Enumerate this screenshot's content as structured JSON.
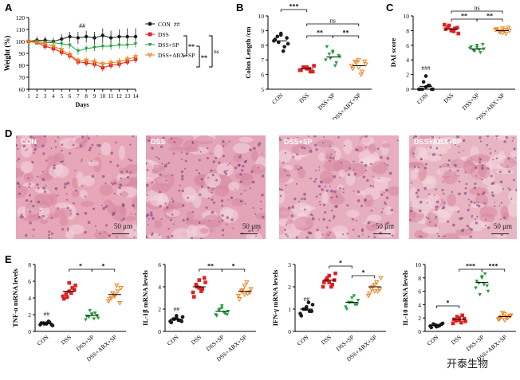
{
  "panels": {
    "A": "A",
    "B": "B",
    "C": "C",
    "D": "D",
    "E": "E"
  },
  "groups": [
    "CON",
    "DSS",
    "DSS+SP",
    "DSS+ABX+SP"
  ],
  "colors": {
    "CON": "#1a1a1a",
    "DSS": "#e02020",
    "DSS+SP": "#1e9e3a",
    "DSS+ABX+SP": "#f07e1a"
  },
  "tissue": {
    "scale_label": "50 μm",
    "labels": [
      "CON",
      "DSS",
      "DSS+SP",
      "DSS+ABX+SP"
    ]
  },
  "watermark": "开泰生物",
  "chart_data": [
    {
      "id": "A",
      "type": "line",
      "title": "",
      "xlabel": "Days",
      "ylabel": "Weight (%)",
      "x": [
        1,
        2,
        3,
        4,
        5,
        6,
        7,
        8,
        9,
        10,
        11,
        12,
        13,
        14
      ],
      "xlim": [
        1,
        14
      ],
      "ylim": [
        60,
        120
      ],
      "yticks": [
        60,
        70,
        80,
        90,
        100,
        110,
        120
      ],
      "series": [
        {
          "name": "CON",
          "values": [
            100,
            101,
            101,
            100,
            102,
            104,
            103,
            104,
            103,
            105,
            103,
            104,
            104,
            104
          ],
          "err": [
            2,
            3,
            3,
            3,
            4,
            4,
            5,
            5,
            5,
            6,
            6,
            6,
            7,
            7
          ]
        },
        {
          "name": "DSS",
          "values": [
            100,
            99,
            96,
            94,
            91,
            88,
            83,
            82,
            81,
            78,
            80,
            81,
            83,
            85
          ],
          "err": [
            1,
            2,
            3,
            3,
            3,
            3,
            3,
            3,
            3,
            3,
            3,
            3,
            3,
            3
          ]
        },
        {
          "name": "DSS+SP",
          "values": [
            100,
            100,
            99,
            99,
            98,
            97,
            92,
            94,
            95,
            96,
            96,
            97,
            97,
            98
          ],
          "err": [
            2,
            2,
            2,
            3,
            3,
            3,
            3,
            3,
            3,
            3,
            3,
            3,
            3,
            3
          ]
        },
        {
          "name": "DSS+ABX+SP",
          "values": [
            100,
            99,
            98,
            96,
            93,
            89,
            84,
            84,
            83,
            81,
            82,
            83,
            85,
            87
          ],
          "err": [
            1,
            2,
            3,
            3,
            3,
            3,
            3,
            3,
            3,
            3,
            3,
            3,
            3,
            3
          ]
        }
      ],
      "annotations": [
        "##"
      ],
      "legend": [
        {
          "name": "CON",
          "mark": "##"
        },
        {
          "name": "DSS",
          "mark": ""
        },
        {
          "name": "DSS+SP",
          "mark": ""
        },
        {
          "name": "DSS+ABX+SP",
          "mark": ""
        }
      ],
      "brackets": [
        "**",
        "**",
        "ns"
      ]
    },
    {
      "id": "B",
      "type": "scatter",
      "title": "",
      "ylabel": "Colon Length /cm",
      "ylim": [
        5,
        10
      ],
      "yticks": [
        5,
        6,
        7,
        8,
        9,
        10
      ],
      "categories": [
        "CON",
        "DSS",
        "DSS+SP",
        "DSS+ABX+SP"
      ],
      "series": [
        {
          "name": "CON",
          "values": [
            8.3,
            8.6,
            8.7,
            7.9,
            8.1,
            8.4,
            8.2,
            7.6,
            8.5,
            8.8
          ],
          "mean": 8.3
        },
        {
          "name": "DSS",
          "values": [
            6.3,
            6.5,
            6.4,
            6.2,
            6.6,
            6.3,
            6.5,
            6.4,
            6.2,
            6.5
          ],
          "mean": 6.4
        },
        {
          "name": "DSS+SP",
          "values": [
            7.0,
            7.4,
            7.6,
            6.8,
            7.2,
            7.9,
            7.1,
            6.6,
            7.3,
            7.5
          ],
          "mean": 7.2
        },
        {
          "name": "DSS+ABX+SP",
          "values": [
            6.6,
            6.9,
            7.0,
            6.2,
            6.7,
            6.4,
            6.8,
            6.0,
            6.9,
            6.5
          ],
          "mean": 6.6
        }
      ],
      "brackets": [
        "***",
        "ns",
        "**",
        "**"
      ]
    },
    {
      "id": "C",
      "type": "scatter",
      "title": "",
      "ylabel": "DAI score",
      "ylim": [
        0,
        10
      ],
      "yticks": [
        0,
        2,
        4,
        6,
        8,
        10
      ],
      "categories": [
        "CON",
        "DSS",
        "DSS+SP",
        "DSS+ABX+SP"
      ],
      "series": [
        {
          "name": "CON",
          "values": [
            0,
            0,
            0.3,
            0.5,
            0,
            0,
            1.0,
            0.5,
            0,
            1.8
          ],
          "mean": 0.4
        },
        {
          "name": "DSS",
          "values": [
            8.8,
            8.5,
            8.0,
            8.3,
            7.6,
            8.2,
            8.7,
            7.9,
            8.4,
            8.1
          ],
          "mean": 8.2
        },
        {
          "name": "DSS+SP",
          "values": [
            5.6,
            5.3,
            6.0,
            5.0,
            5.5,
            5.8,
            5.2,
            5.4,
            6.1,
            5.7
          ],
          "mean": 5.5
        },
        {
          "name": "DSS+ABX+SP",
          "values": [
            8.1,
            7.9,
            8.3,
            7.6,
            8.0,
            8.2,
            7.8,
            8.1,
            8.4,
            7.7
          ],
          "mean": 8.0
        }
      ],
      "annotations": [
        "###"
      ],
      "brackets": [
        "ns",
        "**",
        "**"
      ]
    },
    {
      "id": "E1",
      "type": "scatter",
      "title": "",
      "ylabel": "TNF-α mRNA levels",
      "ylim": [
        0,
        8
      ],
      "yticks": [
        0,
        2,
        4,
        6,
        8
      ],
      "categories": [
        "CON",
        "DSS",
        "DSS+SP",
        "DSS+ABX+SP"
      ],
      "series": [
        {
          "name": "CON",
          "values": [
            0.8,
            1.0,
            0.9,
            1.1,
            0.7,
            1.0,
            0.9,
            1.2,
            0.8,
            1.0
          ],
          "mean": 0.9
        },
        {
          "name": "DSS",
          "values": [
            4.2,
            4.5,
            4.8,
            5.2,
            5.5,
            3.9,
            4.1,
            4.6,
            5.0,
            5.8
          ],
          "mean": 4.8
        },
        {
          "name": "DSS+SP",
          "values": [
            1.4,
            1.7,
            2.0,
            2.2,
            1.6,
            1.8,
            2.5,
            1.5,
            1.9,
            2.1
          ],
          "mean": 1.9
        },
        {
          "name": "DSS+ABX+SP",
          "values": [
            3.6,
            4.0,
            4.4,
            4.8,
            5.2,
            3.9,
            4.6,
            5.5,
            3.4,
            4.2
          ],
          "mean": 4.4
        }
      ],
      "annotations": [
        "##"
      ],
      "brackets": [
        "*",
        "*"
      ]
    },
    {
      "id": "E2",
      "type": "scatter",
      "title": "",
      "ylabel": "IL-1β mRNA levels",
      "ylim": [
        0,
        6
      ],
      "yticks": [
        0,
        2,
        4,
        6
      ],
      "categories": [
        "CON",
        "DSS",
        "DSS+SP",
        "DSS+ABX+SP"
      ],
      "series": [
        {
          "name": "CON",
          "values": [
            0.9,
            1.1,
            1.2,
            1.0,
            1.3,
            0.8,
            1.1,
            1.0,
            0.9,
            1.4
          ],
          "mean": 1.1
        },
        {
          "name": "DSS",
          "values": [
            3.5,
            4.2,
            4.6,
            3.8,
            4.4,
            3.1,
            4.0,
            3.6,
            4.8,
            3.9
          ],
          "mean": 4.0
        },
        {
          "name": "DSS+SP",
          "values": [
            1.5,
            1.9,
            2.3,
            1.6,
            1.8,
            1.4,
            2.0,
            1.7,
            1.5,
            2.1
          ],
          "mean": 1.8
        },
        {
          "name": "DSS+ABX+SP",
          "values": [
            3.2,
            3.6,
            4.1,
            3.4,
            3.8,
            2.9,
            3.7,
            4.4,
            3.5,
            3.3
          ],
          "mean": 3.6
        }
      ],
      "annotations": [
        "##"
      ],
      "brackets": [
        "**",
        "*"
      ]
    },
    {
      "id": "E3",
      "type": "scatter",
      "title": "",
      "ylabel": "IFN-γ mRNA levels",
      "ylim": [
        0,
        3
      ],
      "yticks": [
        0,
        1,
        2,
        3
      ],
      "categories": [
        "CON",
        "DSS",
        "DSS+SP",
        "DSS+ABX+SP"
      ],
      "series": [
        {
          "name": "CON",
          "values": [
            0.8,
            1.0,
            1.1,
            0.9,
            1.2,
            0.7,
            1.0,
            1.3,
            0.9,
            1.0
          ],
          "mean": 1.0
        },
        {
          "name": "DSS",
          "values": [
            2.0,
            2.3,
            2.5,
            2.1,
            2.6,
            2.2,
            2.4,
            2.0,
            2.3,
            2.2
          ],
          "mean": 2.3
        },
        {
          "name": "DSS+SP",
          "values": [
            1.1,
            1.3,
            1.5,
            1.2,
            1.4,
            1.0,
            1.3,
            1.6,
            1.2,
            1.3
          ],
          "mean": 1.3
        },
        {
          "name": "DSS+ABX+SP",
          "values": [
            1.6,
            1.9,
            2.1,
            1.8,
            2.4,
            1.7,
            2.0,
            2.2,
            1.9,
            1.8
          ],
          "mean": 2.0
        }
      ],
      "annotations": [
        "##"
      ],
      "brackets": [
        "*",
        "*"
      ]
    },
    {
      "id": "E4",
      "type": "scatter",
      "title": "",
      "ylabel": "IL-10 mRNA levels",
      "ylim": [
        0,
        10
      ],
      "yticks": [
        0,
        2,
        4,
        6,
        8,
        10
      ],
      "categories": [
        "CON",
        "DSS",
        "DSS+SP",
        "DSS+ABX+SP"
      ],
      "series": [
        {
          "name": "CON",
          "values": [
            0.8,
            1.1,
            0.7,
            0.9,
            1.2,
            0.6,
            1.0,
            0.8,
            1.1,
            0.9
          ],
          "mean": 0.9
        },
        {
          "name": "DSS",
          "values": [
            1.2,
            1.6,
            2.0,
            2.4,
            1.5,
            1.8,
            2.2,
            1.3,
            1.9,
            1.7
          ],
          "mean": 1.8
        },
        {
          "name": "DSS+SP",
          "values": [
            6.5,
            7.2,
            8.0,
            8.6,
            6.0,
            7.5,
            5.5,
            7.0,
            6.8,
            8.2
          ],
          "mean": 7.3
        },
        {
          "name": "DSS+ABX+SP",
          "values": [
            1.8,
            2.2,
            2.6,
            2.0,
            2.4,
            1.9,
            2.8,
            2.1,
            2.3,
            1.7
          ],
          "mean": 2.2
        }
      ],
      "brackets": [
        "*",
        "***",
        "***"
      ]
    }
  ]
}
